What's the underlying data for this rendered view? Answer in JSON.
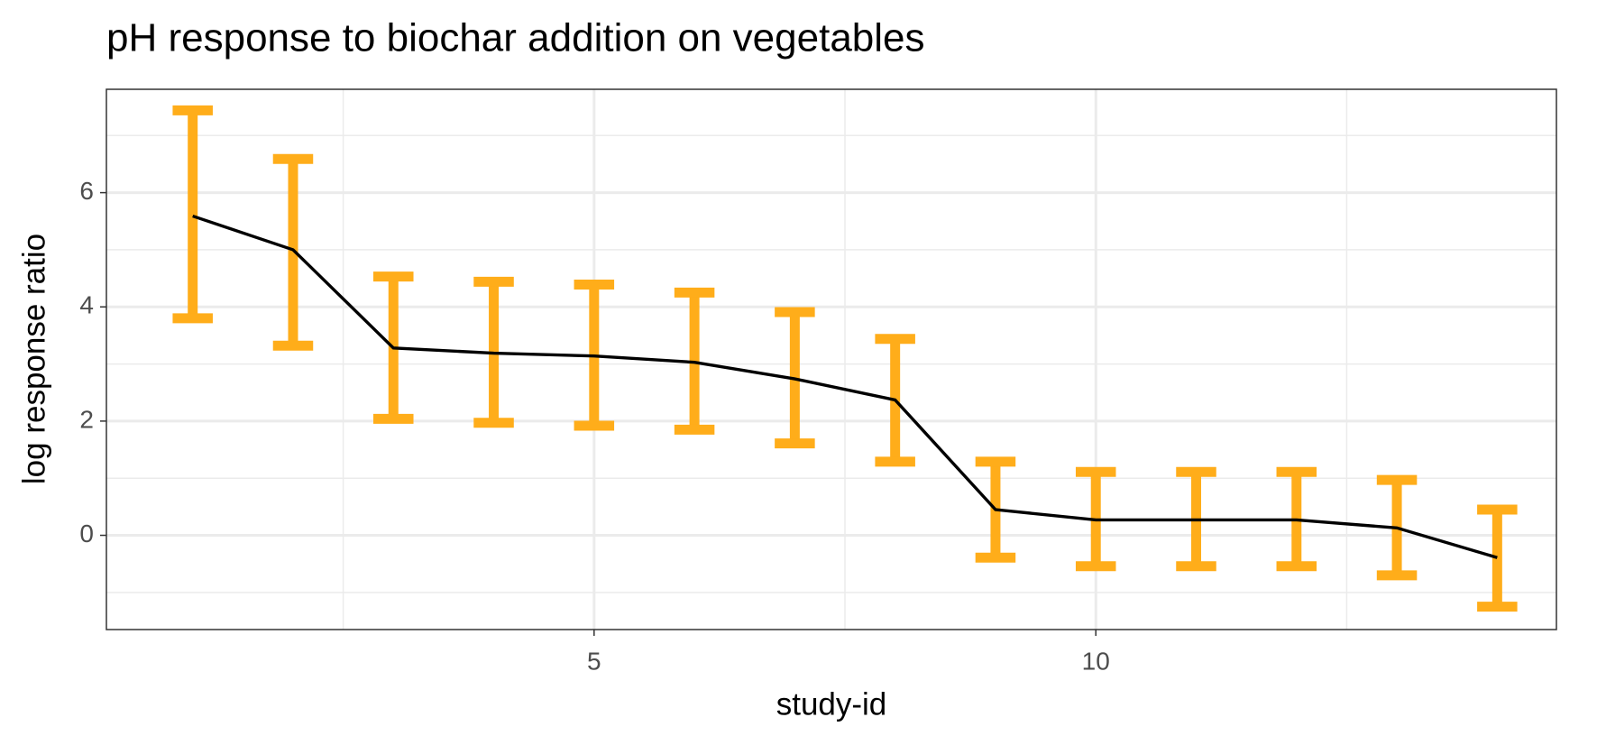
{
  "chart_data": {
    "type": "line-errorbar",
    "title": "pH response to biochar addition on vegetables",
    "x_label": "study-id",
    "y_label": "log response ratio",
    "x": [
      1,
      2,
      3,
      4,
      5,
      6,
      7,
      8,
      9,
      10,
      11,
      12,
      13,
      14
    ],
    "values": [
      5.59,
      5.0,
      3.28,
      3.19,
      3.14,
      3.03,
      2.74,
      2.37,
      0.45,
      0.27,
      0.27,
      0.27,
      0.13,
      -0.39
    ],
    "lower": [
      3.8,
      3.32,
      2.04,
      1.97,
      1.92,
      1.85,
      1.61,
      1.29,
      -0.39,
      -0.54,
      -0.54,
      -0.54,
      -0.7,
      -1.25
    ],
    "upper": [
      7.44,
      6.59,
      4.53,
      4.44,
      4.39,
      4.25,
      3.91,
      3.44,
      1.29,
      1.11,
      1.11,
      1.11,
      0.97,
      0.45
    ],
    "line_color": "#000000",
    "errorbar_color": "#ffad1a",
    "xlim": [
      0.14,
      14.59
    ],
    "xticks": [
      5,
      10
    ],
    "ylim": [
      -1.65,
      7.81
    ],
    "yticks": [
      0,
      2,
      4,
      6
    ],
    "grid": true
  }
}
